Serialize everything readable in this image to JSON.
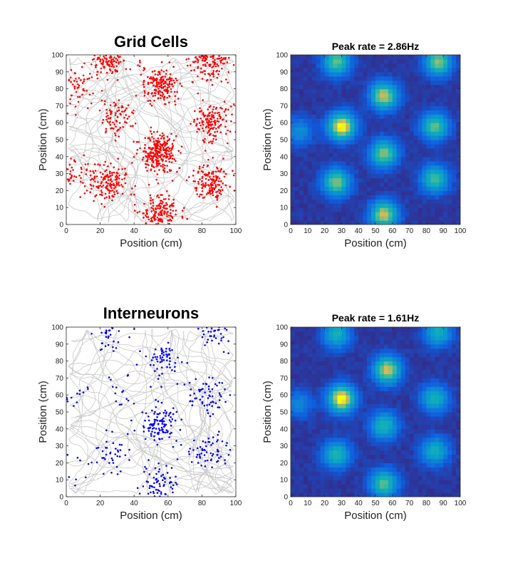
{
  "chart_data": [
    {
      "id": "grid-trajectory",
      "type": "scatter",
      "title": "Grid Cells",
      "xlabel": "Position (cm)",
      "ylabel": "Position (cm)",
      "xlim": [
        0,
        100
      ],
      "ylim": [
        0,
        100
      ],
      "xticks": [
        "0",
        "20",
        "40",
        "60",
        "80",
        "100"
      ],
      "yticks": [
        "0",
        "10",
        "20",
        "30",
        "40",
        "50",
        "60",
        "70",
        "80",
        "90",
        "100"
      ],
      "trajectory_color": "#c8c8c8",
      "spike_color": "#ff0000",
      "spike_clusters": [
        {
          "x": 55,
          "y": 42,
          "n": 260
        },
        {
          "x": 55,
          "y": 82,
          "n": 170
        },
        {
          "x": 25,
          "y": 97,
          "n": 130
        },
        {
          "x": 85,
          "y": 97,
          "n": 150
        },
        {
          "x": 30,
          "y": 62,
          "n": 80
        },
        {
          "x": 85,
          "y": 60,
          "n": 150
        },
        {
          "x": 25,
          "y": 25,
          "n": 150
        },
        {
          "x": 85,
          "y": 25,
          "n": 150
        },
        {
          "x": 55,
          "y": 7,
          "n": 170
        },
        {
          "x": 5,
          "y": 80,
          "n": 60
        },
        {
          "x": 5,
          "y": 30,
          "n": 50
        }
      ]
    },
    {
      "id": "grid-ratemap",
      "type": "heatmap",
      "title": "Peak rate = 2.86Hz",
      "xlabel": "Position (cm)",
      "ylabel": "Position (cm)",
      "xlim": [
        0,
        100
      ],
      "ylim": [
        0,
        100
      ],
      "xticks": [
        "0",
        "10",
        "20",
        "30",
        "40",
        "50",
        "60",
        "70",
        "80",
        "90",
        "100"
      ],
      "yticks": [
        "0",
        "10",
        "20",
        "30",
        "40",
        "50",
        "60",
        "70",
        "80",
        "90",
        "100"
      ],
      "peak_rate_hz": 2.86,
      "fields": [
        {
          "x": 30,
          "y": 58,
          "peak": 1.0
        },
        {
          "x": 55,
          "y": 76,
          "peak": 0.85
        },
        {
          "x": 27,
          "y": 96,
          "peak": 0.7
        },
        {
          "x": 87,
          "y": 96,
          "peak": 0.75
        },
        {
          "x": 85,
          "y": 58,
          "peak": 0.7
        },
        {
          "x": 55,
          "y": 42,
          "peak": 0.75
        },
        {
          "x": 27,
          "y": 25,
          "peak": 0.75
        },
        {
          "x": 85,
          "y": 27,
          "peak": 0.65
        },
        {
          "x": 55,
          "y": 6,
          "peak": 0.85
        },
        {
          "x": 5,
          "y": 55,
          "peak": 0.35
        }
      ]
    },
    {
      "id": "interneuron-trajectory",
      "type": "scatter",
      "title": "Interneurons",
      "xlabel": "Position (cm)",
      "ylabel": "Position (cm)",
      "xlim": [
        0,
        100
      ],
      "ylim": [
        0,
        100
      ],
      "xticks": [
        "0",
        "20",
        "40",
        "60",
        "80",
        "100"
      ],
      "yticks": [
        "0",
        "10",
        "20",
        "30",
        "40",
        "50",
        "60",
        "70",
        "80",
        "90",
        "100"
      ],
      "trajectory_color": "#c8c8c8",
      "spike_color": "#0000ff",
      "spike_clusters": [
        {
          "x": 55,
          "y": 43,
          "n": 110
        },
        {
          "x": 57,
          "y": 80,
          "n": 60
        },
        {
          "x": 25,
          "y": 97,
          "n": 40
        },
        {
          "x": 87,
          "y": 97,
          "n": 50
        },
        {
          "x": 30,
          "y": 62,
          "n": 15
        },
        {
          "x": 83,
          "y": 60,
          "n": 60
        },
        {
          "x": 25,
          "y": 25,
          "n": 40
        },
        {
          "x": 85,
          "y": 27,
          "n": 60
        },
        {
          "x": 55,
          "y": 9,
          "n": 70
        },
        {
          "x": 5,
          "y": 60,
          "n": 15
        },
        {
          "x": 5,
          "y": 15,
          "n": 10
        }
      ]
    },
    {
      "id": "interneuron-ratemap",
      "type": "heatmap",
      "title": "Peak rate = 1.61Hz",
      "xlabel": "Position (cm)",
      "ylabel": "Position (cm)",
      "xlim": [
        0,
        100
      ],
      "ylim": [
        0,
        100
      ],
      "xticks": [
        "0",
        "10",
        "20",
        "30",
        "40",
        "50",
        "60",
        "70",
        "80",
        "90",
        "100"
      ],
      "yticks": [
        "0",
        "10",
        "20",
        "30",
        "40",
        "50",
        "60",
        "70",
        "80",
        "90",
        "100"
      ],
      "peak_rate_hz": 1.61,
      "fields": [
        {
          "x": 30,
          "y": 58,
          "peak": 1.0
        },
        {
          "x": 57,
          "y": 75,
          "peak": 0.85
        },
        {
          "x": 27,
          "y": 96,
          "peak": 0.55
        },
        {
          "x": 87,
          "y": 97,
          "peak": 0.55
        },
        {
          "x": 85,
          "y": 58,
          "peak": 0.55
        },
        {
          "x": 55,
          "y": 42,
          "peak": 0.6
        },
        {
          "x": 27,
          "y": 25,
          "peak": 0.6
        },
        {
          "x": 85,
          "y": 27,
          "peak": 0.55
        },
        {
          "x": 55,
          "y": 8,
          "peak": 0.7
        },
        {
          "x": 5,
          "y": 55,
          "peak": 0.3
        }
      ]
    }
  ]
}
